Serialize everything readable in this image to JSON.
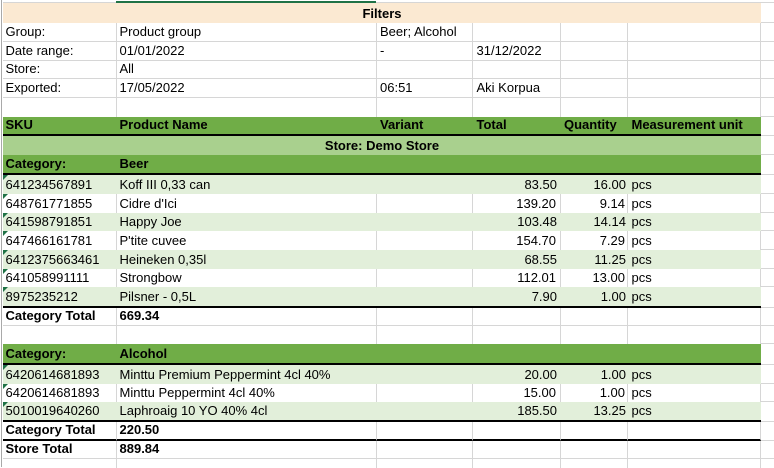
{
  "filters": {
    "title": "Filters",
    "rows": [
      {
        "label": "Group:",
        "b": "Product group",
        "c": "Beer; Alcohol",
        "d": ""
      },
      {
        "label": "Date range:",
        "b": "01/01/2022",
        "c": "-",
        "d": "31/12/2022"
      },
      {
        "label": "Store:",
        "b": "All",
        "c": "",
        "d": ""
      },
      {
        "label": "Exported:",
        "b": "17/05/2022",
        "c": "06:51",
        "d": "Aki Korpua"
      }
    ]
  },
  "table": {
    "header": {
      "sku": "SKU",
      "name": "Product Name",
      "variant": "Variant",
      "total": "Total",
      "quantity": "Quantity",
      "unit": "Measurement unit"
    },
    "store_band": "Store: Demo Store",
    "sections": [
      {
        "category_label": "Category:",
        "category_name": "Beer",
        "rows": [
          {
            "sku": "641234567891",
            "name": "Koff III 0,33 can",
            "variant": "",
            "total": "83.50",
            "quantity": "16.00",
            "unit": "pcs"
          },
          {
            "sku": "648761771855",
            "name": "Cidre d'Ici",
            "variant": "",
            "total": "139.20",
            "quantity": "9.14",
            "unit": "pcs"
          },
          {
            "sku": "641598791851",
            "name": "Happy Joe",
            "variant": "",
            "total": "103.48",
            "quantity": "14.14",
            "unit": "pcs"
          },
          {
            "sku": "647466161781",
            "name": "P'tite cuvee",
            "variant": "",
            "total": "154.70",
            "quantity": "7.29",
            "unit": "pcs"
          },
          {
            "sku": "6412375663461",
            "name": "Heineken 0,35l",
            "variant": "",
            "total": "68.55",
            "quantity": "11.25",
            "unit": "pcs"
          },
          {
            "sku": "641058991111",
            "name": "Strongbow",
            "variant": "",
            "total": "112.01",
            "quantity": "13.00",
            "unit": "pcs"
          },
          {
            "sku": "8975235212",
            "name": "Pilsner - 0,5L",
            "variant": "",
            "total": "7.90",
            "quantity": "1.00",
            "unit": "pcs"
          }
        ],
        "total_label": "Category Total",
        "total_value": "669.34"
      },
      {
        "category_label": "Category:",
        "category_name": "Alcohol",
        "rows": [
          {
            "sku": "6420614681893",
            "name": "Minttu Premium Peppermint 4cl 40%",
            "variant": "",
            "total": "20.00",
            "quantity": "1.00",
            "unit": "pcs"
          },
          {
            "sku": "6420614681893",
            "name": "Minttu Peppermint 4cl 40%",
            "variant": "",
            "total": "15.00",
            "quantity": "1.00",
            "unit": "pcs"
          },
          {
            "sku": "5010019640260",
            "name": "Laphroaig 10 YO 40% 4cl",
            "variant": "",
            "total": "185.50",
            "quantity": "13.25",
            "unit": "pcs"
          }
        ],
        "total_label": "Category Total",
        "total_value": "220.50"
      }
    ],
    "store_total_label": "Store Total",
    "store_total_value": "889.84"
  },
  "colors": {
    "header_green": "#70ad47",
    "band_light_green": "#e2efda",
    "store_band_green": "#a9d08e",
    "filters_cream": "#fbe9d2",
    "dark_green": "#1f7246",
    "gridline": "#d6d6d6",
    "border_black": "#000000"
  }
}
